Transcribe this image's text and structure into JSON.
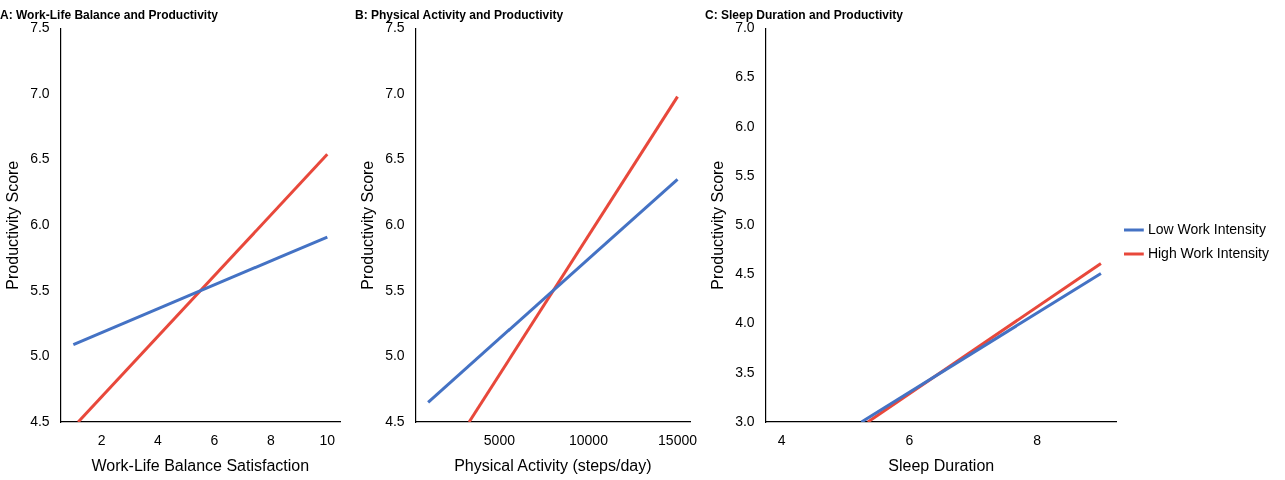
{
  "chart_data": [
    {
      "type": "line",
      "title": "A: Work-Life Balance and Productivity",
      "xlabel": "Work-Life Balance Satisfaction",
      "ylabel": "Productivity Score",
      "xlim": [
        0.55,
        10.45
      ],
      "xticks": [
        2,
        4,
        6,
        8,
        10
      ],
      "ylim": [
        4.5,
        7.5
      ],
      "yticks": [
        4.5,
        {
          "value": 5,
          "label": "5.0"
        },
        5.5,
        {
          "value": 6,
          "label": "6.0"
        },
        6.5,
        {
          "value": 7,
          "label": "7.0"
        },
        7.5
      ],
      "grid": false,
      "legend": false,
      "marker": "none",
      "line_style": "solid",
      "series": [
        {
          "color": "#4472c4",
          "x": [
            1,
            10
          ],
          "values": [
            5.09,
            5.91
          ]
        },
        {
          "color": "#e8483b",
          "x": [
            1.17,
            10
          ],
          "values": [
            4.5,
            6.54
          ]
        }
      ]
    },
    {
      "type": "line",
      "title": "B: Physical Activity and Productivity",
      "xlabel": "Physical Activity (steps/day)",
      "ylabel": "Productivity Score",
      "xlim": [
        300,
        15700
      ],
      "xticks": [
        5000,
        10000,
        15000
      ],
      "ylim": [
        4.5,
        7.5
      ],
      "yticks": [
        4.5,
        {
          "value": 5,
          "label": "5.0"
        },
        5.5,
        {
          "value": 6,
          "label": "6.0"
        },
        6.5,
        {
          "value": 7,
          "label": "7.0"
        },
        7.5
      ],
      "grid": false,
      "legend": false,
      "marker": "none",
      "line_style": "solid",
      "series": [
        {
          "color": "#4472c4",
          "x": [
            1000,
            15000
          ],
          "values": [
            4.65,
            6.35
          ]
        },
        {
          "color": "#e8483b",
          "x": [
            3300,
            15000
          ],
          "values": [
            4.5,
            6.98
          ]
        }
      ]
    },
    {
      "type": "line",
      "title": "C: Sleep Duration and Productivity",
      "xlabel": "Sleep Duration",
      "ylabel": "Productivity Score",
      "xlim": [
        3.75,
        9.25
      ],
      "xticks": [
        4,
        6,
        8
      ],
      "ylim": [
        3,
        7
      ],
      "yticks": [
        {
          "value": 3,
          "label": "3.0"
        },
        3.5,
        {
          "value": 4,
          "label": "4.0"
        },
        4.5,
        {
          "value": 5,
          "label": "5.0"
        },
        5.5,
        {
          "value": 6,
          "label": "6.0"
        },
        6.5,
        {
          "value": 7,
          "label": "7.0"
        }
      ],
      "grid": false,
      "legend": "right",
      "marker": "none",
      "line_style": "solid",
      "series": [
        {
          "name": "Low Work Intensity",
          "color": "#4472c4",
          "x": [
            5.25,
            9
          ],
          "values": [
            3.0,
            4.51
          ]
        },
        {
          "name": "High Work Intensity",
          "color": "#e8483b",
          "x": [
            5.35,
            9
          ],
          "values": [
            3.0,
            4.61
          ]
        }
      ]
    }
  ]
}
